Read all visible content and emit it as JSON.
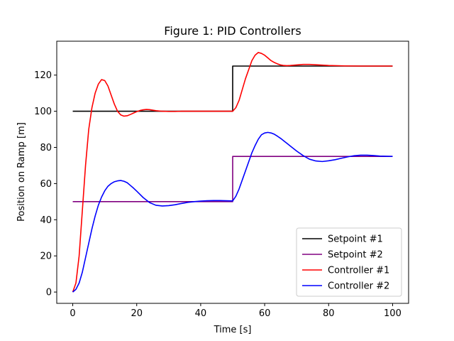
{
  "chart_data": {
    "type": "line",
    "title": "Figure 1: PID Controllers",
    "xlabel": "Time [s]",
    "ylabel": "Position on Ramp [m]",
    "xlim": [
      -5,
      105
    ],
    "ylim": [
      -6.25,
      138.75
    ],
    "xticks": [
      0,
      20,
      40,
      60,
      80,
      100
    ],
    "yticks": [
      0,
      20,
      40,
      60,
      80,
      100,
      120
    ],
    "grid": false,
    "legend_position": "lower-right",
    "series": [
      {
        "name": "Setpoint #1",
        "color": "#000000",
        "x": [
          0,
          50,
          50,
          100
        ],
        "y": [
          100,
          100,
          125,
          125
        ]
      },
      {
        "name": "Setpoint #2",
        "color": "#800080",
        "x": [
          0,
          50,
          50,
          100
        ],
        "y": [
          50,
          50,
          75,
          75
        ]
      },
      {
        "name": "Controller #1",
        "color": "#ff0000",
        "x": [
          0,
          1,
          2,
          3,
          4,
          5,
          6,
          7,
          8,
          9,
          10,
          11,
          12,
          13,
          14,
          15,
          16,
          17,
          18,
          19,
          20,
          21,
          22,
          23,
          24,
          25,
          26,
          28,
          30,
          32,
          34,
          36,
          38,
          40,
          42,
          44,
          46,
          48,
          50,
          51,
          52,
          53,
          54,
          55,
          56,
          57,
          58,
          59,
          60,
          61,
          62,
          63,
          64,
          65,
          66,
          67,
          68,
          70,
          72,
          74,
          76,
          78,
          80,
          85,
          90,
          95,
          100
        ],
        "y": [
          0,
          5,
          20,
          45,
          70,
          90,
          102,
          110,
          115,
          117.5,
          117,
          114,
          109,
          104,
          100,
          98,
          97.3,
          97.5,
          98.2,
          99,
          99.8,
          100.4,
          100.8,
          101,
          100.9,
          100.6,
          100.3,
          100,
          99.9,
          99.9,
          100,
          100,
          100,
          100,
          100,
          100,
          100,
          100,
          100,
          102,
          106,
          112,
          118,
          123,
          128,
          131,
          132.5,
          132,
          131,
          129.5,
          128,
          127,
          126.2,
          125.6,
          125.3,
          125.2,
          125.3,
          125.6,
          125.9,
          125.9,
          125.7,
          125.5,
          125.3,
          125.1,
          125,
          125,
          125
        ]
      },
      {
        "name": "Controller #2",
        "color": "#0000ff",
        "x": [
          0,
          1,
          2,
          3,
          4,
          5,
          6,
          7,
          8,
          9,
          10,
          11,
          12,
          13,
          14,
          15,
          16,
          17,
          18,
          19,
          20,
          22,
          24,
          26,
          28,
          30,
          32,
          34,
          36,
          38,
          40,
          42,
          44,
          46,
          48,
          50,
          51,
          52,
          53,
          54,
          55,
          56,
          57,
          58,
          59,
          60,
          61,
          62,
          63,
          64,
          65,
          66,
          67,
          68,
          70,
          72,
          74,
          76,
          78,
          80,
          82,
          84,
          86,
          88,
          90,
          92,
          94,
          96,
          98,
          100
        ],
        "y": [
          0,
          1.5,
          5,
          11,
          19,
          27,
          35,
          42,
          48,
          52.5,
          56,
          58.5,
          60,
          61,
          61.5,
          61.7,
          61.3,
          60.5,
          59,
          57.5,
          55.8,
          52.3,
          49.5,
          48,
          47.6,
          47.8,
          48.3,
          49,
          49.6,
          50,
          50.3,
          50.5,
          50.6,
          50.6,
          50.5,
          50.4,
          53,
          57,
          62,
          67,
          72,
          77,
          81,
          84.5,
          87,
          88,
          88.3,
          88,
          87.3,
          86.2,
          85,
          83.6,
          82.2,
          80.8,
          78,
          75.5,
          73.5,
          72.5,
          72.2,
          72.6,
          73.2,
          74,
          74.8,
          75.4,
          75.7,
          75.7,
          75.5,
          75.2,
          75.1,
          75
        ]
      }
    ]
  }
}
